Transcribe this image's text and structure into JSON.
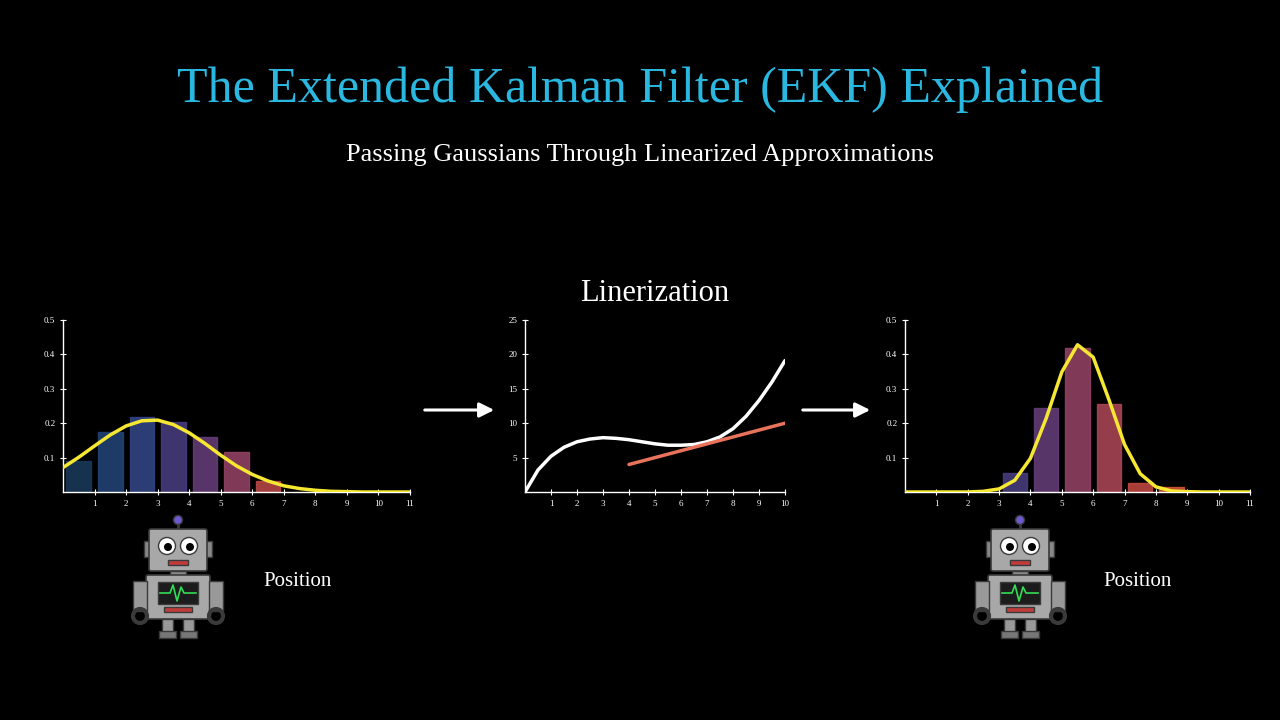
{
  "title": "The Extended Kalman Filter (EKF) Explained",
  "subtitle": "Passing Gaussians Through Linearized Approximations",
  "chart_data": [
    {
      "type": "bar",
      "annotations": [
        "Position"
      ],
      "xlim": [
        0,
        11
      ],
      "ylim": [
        0,
        0.5
      ],
      "xticks": [
        1,
        2,
        3,
        4,
        5,
        6,
        7,
        8,
        9,
        10,
        11
      ],
      "yticks": [
        0.1,
        0.2,
        0.3,
        0.4,
        0.5
      ],
      "series": [
        {
          "type": "bar",
          "x": [
            0.5,
            1.5,
            2.5,
            3.5,
            4.5,
            5.5,
            6.5
          ],
          "values": [
            0.09,
            0.174,
            0.218,
            0.203,
            0.16,
            0.116,
            0.032
          ],
          "colors": [
            "#1b3b5c",
            "#24467a",
            "#34478a",
            "#4a3f82",
            "#683f7c",
            "#974466",
            "#c04a4a"
          ]
        },
        {
          "type": "line",
          "x": [
            0,
            0.5,
            1,
            1.5,
            2,
            2.5,
            3,
            3.5,
            4,
            4.5,
            5,
            5.5,
            6,
            6.5,
            7,
            7.5,
            8,
            8.5,
            9,
            9.5,
            10,
            10.5,
            11
          ],
          "values": [
            0.071,
            0.101,
            0.134,
            0.166,
            0.192,
            0.207,
            0.209,
            0.196,
            0.172,
            0.141,
            0.107,
            0.076,
            0.051,
            0.032,
            0.018,
            0.01,
            0.005,
            0.002,
            0.001,
            0,
            0,
            0,
            0
          ],
          "color": "#f5e732"
        }
      ]
    },
    {
      "type": "line",
      "title": "Linerization",
      "xlim": [
        0,
        10
      ],
      "ylim": [
        0,
        25
      ],
      "xticks": [
        1,
        2,
        3,
        4,
        5,
        6,
        7,
        8,
        9,
        10
      ],
      "yticks": [
        5,
        10,
        15,
        20,
        25
      ],
      "series": [
        {
          "type": "line",
          "x": [
            0,
            0.5,
            1,
            1.5,
            2,
            2.5,
            3,
            3.5,
            4,
            4.5,
            5,
            5.5,
            6,
            6.5,
            7,
            7.5,
            8,
            8.5,
            9,
            9.5,
            10
          ],
          "values": [
            0,
            3.2,
            5.2,
            6.5,
            7.3,
            7.7,
            7.9,
            7.8,
            7.6,
            7.3,
            7.0,
            6.8,
            6.8,
            6.9,
            7.3,
            8.0,
            9.2,
            11.0,
            13.3,
            16.0,
            19.1
          ],
          "color": "#ffffff"
        },
        {
          "type": "line",
          "x": [
            4,
            10
          ],
          "values": [
            4,
            10
          ],
          "color": "#e8735a"
        }
      ]
    },
    {
      "type": "bar",
      "annotations": [
        "Position"
      ],
      "xlim": [
        0,
        11
      ],
      "ylim": [
        0,
        0.5
      ],
      "xticks": [
        1,
        2,
        3,
        4,
        5,
        6,
        7,
        8,
        9,
        10,
        11
      ],
      "yticks": [
        0.1,
        0.2,
        0.3,
        0.4,
        0.5
      ],
      "series": [
        {
          "type": "bar",
          "x": [
            3.5,
            4.5,
            5.5,
            6.5,
            7.5,
            8.5
          ],
          "values": [
            0.055,
            0.245,
            0.42,
            0.255,
            0.025,
            0.015
          ],
          "colors": [
            "#4a3f82",
            "#683f7c",
            "#974466",
            "#b04858",
            "#c84a44",
            "#d8553a"
          ]
        },
        {
          "type": "line",
          "x": [
            0,
            0.5,
            1,
            1.5,
            2,
            2.5,
            3,
            3.5,
            4,
            4.5,
            5,
            5.5,
            6,
            6.5,
            7,
            7.5,
            8,
            8.5,
            9,
            9.5,
            10,
            10.5,
            11
          ],
          "values": [
            0,
            0,
            0,
            0,
            0,
            0.002,
            0.009,
            0.034,
            0.098,
            0.214,
            0.349,
            0.428,
            0.392,
            0.269,
            0.138,
            0.053,
            0.015,
            0.003,
            0.001,
            0,
            0,
            0,
            0
          ],
          "color": "#f5e732"
        }
      ]
    }
  ]
}
